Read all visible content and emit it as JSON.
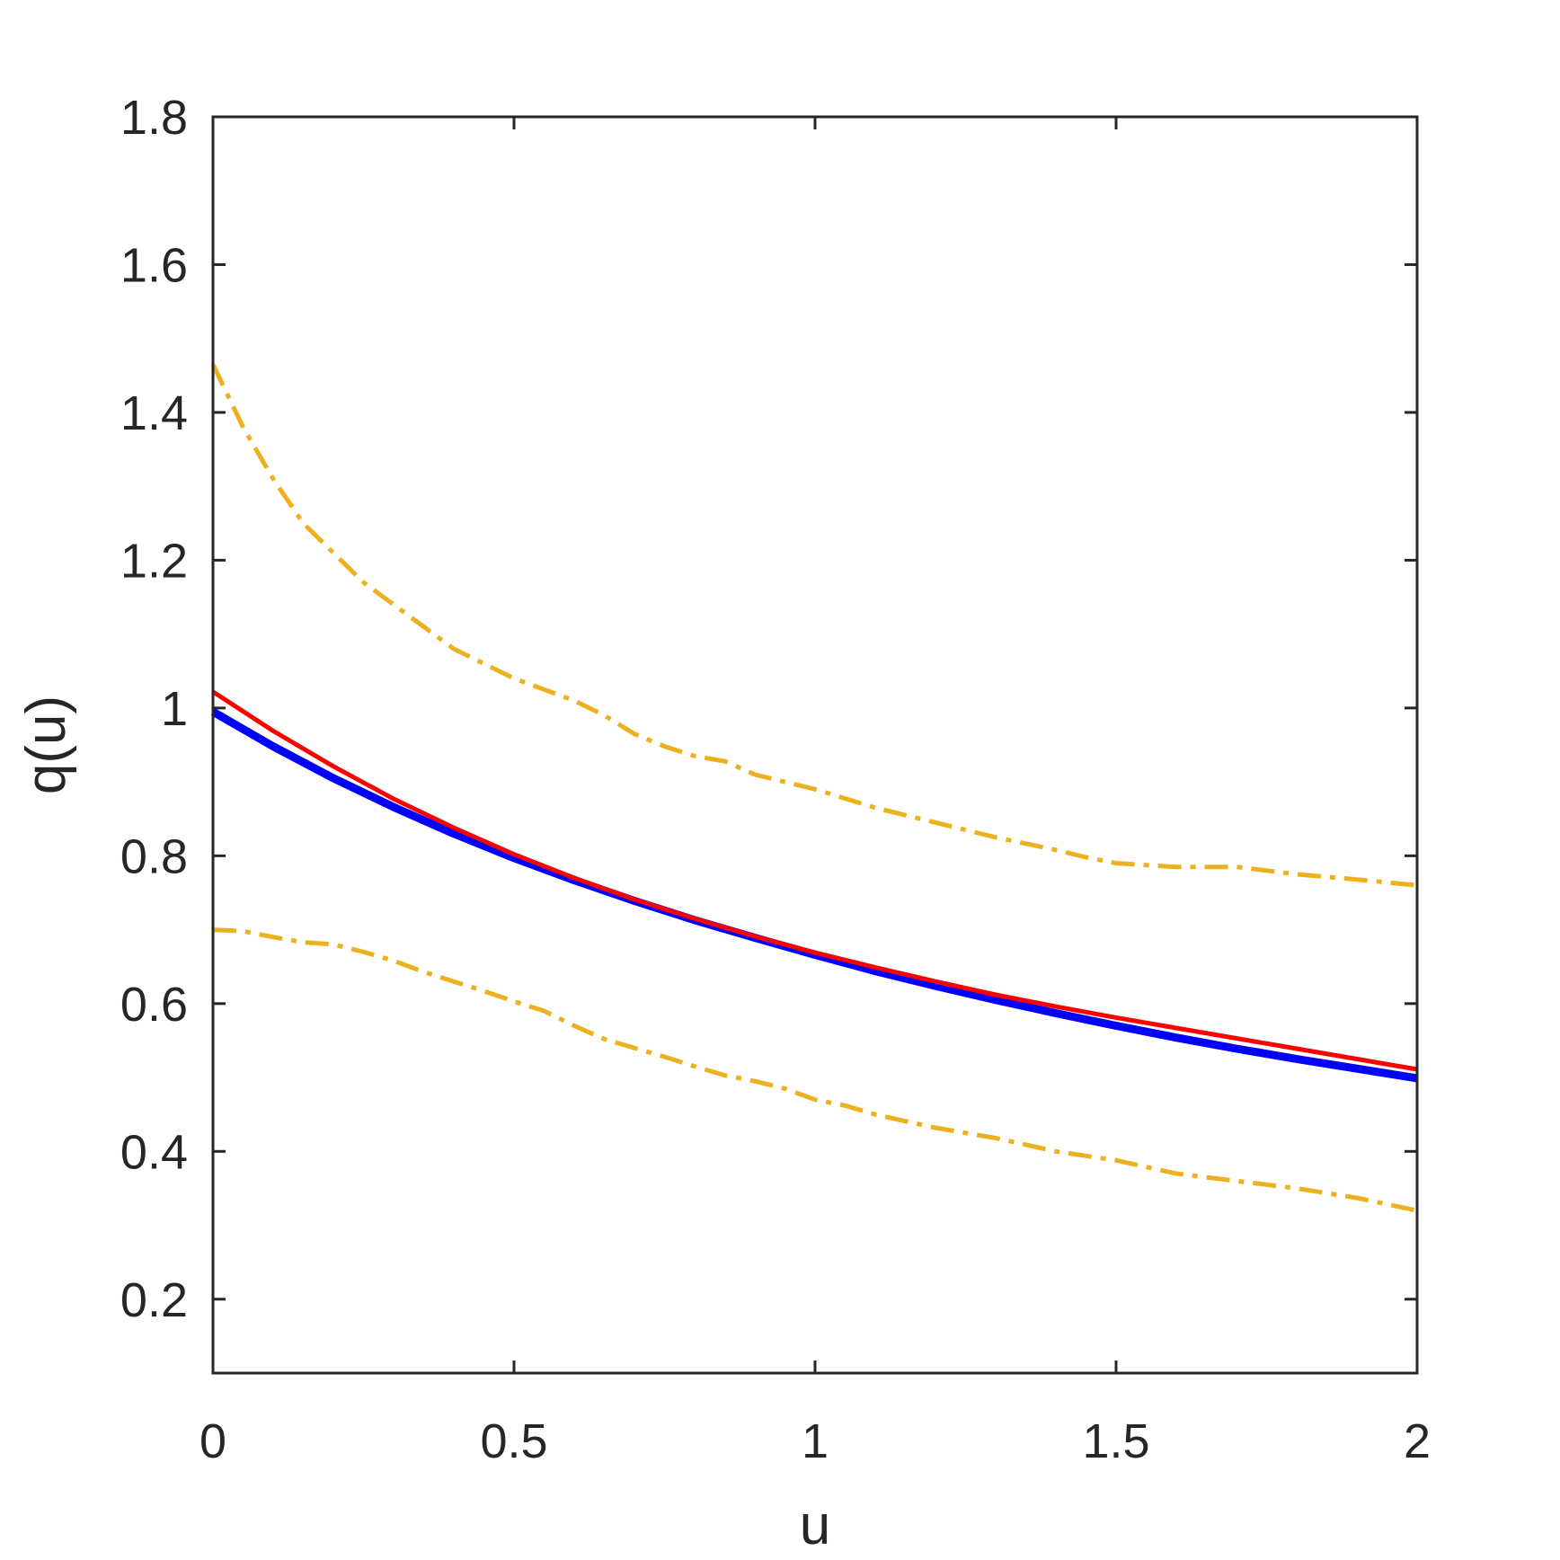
{
  "chart_data": {
    "type": "line",
    "xlabel": "u",
    "ylabel": "q(u)",
    "xlim": [
      0,
      2
    ],
    "ylim": [
      0.1,
      1.8
    ],
    "xticks": [
      "0",
      "0.5",
      "1",
      "1.5",
      "2"
    ],
    "yticks": [
      "0.2",
      "0.4",
      "0.6",
      "0.8",
      "1",
      "1.2",
      "1.4",
      "1.6",
      "1.8"
    ],
    "grid": false,
    "legend": "none",
    "series": [
      {
        "color": "#0000ff",
        "style": "solid",
        "x": [
          0,
          0.1,
          0.2,
          0.3,
          0.4,
          0.5,
          0.6,
          0.7,
          0.8,
          0.9,
          1.0,
          1.1,
          1.2,
          1.3,
          1.4,
          1.5,
          1.6,
          1.7,
          1.8,
          1.9,
          2.0
        ],
        "values": [
          0.995,
          0.948,
          0.905,
          0.866,
          0.83,
          0.797,
          0.767,
          0.739,
          0.713,
          0.689,
          0.666,
          0.644,
          0.624,
          0.605,
          0.587,
          0.57,
          0.554,
          0.539,
          0.525,
          0.512,
          0.499
        ]
      },
      {
        "color": "#ff0000",
        "style": "solid",
        "x": [
          0,
          0.1,
          0.2,
          0.3,
          0.4,
          0.5,
          0.6,
          0.7,
          0.8,
          0.9,
          1.0,
          1.1,
          1.2,
          1.3,
          1.4,
          1.5,
          1.6,
          1.7,
          1.8,
          1.9,
          2.0
        ],
        "values": [
          1.022,
          0.969,
          0.921,
          0.877,
          0.838,
          0.802,
          0.77,
          0.741,
          0.715,
          0.691,
          0.669,
          0.649,
          0.63,
          0.612,
          0.596,
          0.581,
          0.567,
          0.553,
          0.539,
          0.525,
          0.511
        ]
      },
      {
        "color": "#edb120",
        "style": "dashdot",
        "x": [
          0,
          0.05,
          0.1,
          0.15,
          0.2,
          0.25,
          0.3,
          0.35,
          0.4,
          0.45,
          0.5,
          0.55,
          0.6,
          0.65,
          0.7,
          0.75,
          0.8,
          0.85,
          0.9,
          0.95,
          1.0,
          1.1,
          1.2,
          1.3,
          1.4,
          1.45,
          1.5,
          1.6,
          1.7,
          1.8,
          1.9,
          2.0
        ],
        "values": [
          1.465,
          1.38,
          1.31,
          1.25,
          1.21,
          1.17,
          1.14,
          1.11,
          1.08,
          1.06,
          1.04,
          1.025,
          1.01,
          0.99,
          0.965,
          0.948,
          0.935,
          0.928,
          0.91,
          0.9,
          0.89,
          0.865,
          0.845,
          0.825,
          0.808,
          0.798,
          0.79,
          0.785,
          0.785,
          0.775,
          0.768,
          0.76
        ]
      },
      {
        "color": "#edb120",
        "style": "dashdot",
        "x": [
          0,
          0.05,
          0.1,
          0.15,
          0.2,
          0.25,
          0.3,
          0.35,
          0.4,
          0.45,
          0.5,
          0.55,
          0.6,
          0.65,
          0.7,
          0.75,
          0.8,
          0.85,
          0.9,
          0.95,
          1.0,
          1.05,
          1.1,
          1.2,
          1.3,
          1.4,
          1.5,
          1.6,
          1.7,
          1.8,
          1.9,
          2.0
        ],
        "values": [
          0.7,
          0.698,
          0.69,
          0.683,
          0.68,
          0.67,
          0.658,
          0.643,
          0.63,
          0.617,
          0.603,
          0.59,
          0.57,
          0.552,
          0.54,
          0.528,
          0.515,
          0.503,
          0.495,
          0.485,
          0.47,
          0.462,
          0.45,
          0.432,
          0.418,
          0.4,
          0.388,
          0.37,
          0.36,
          0.35,
          0.337,
          0.32
        ]
      }
    ]
  }
}
